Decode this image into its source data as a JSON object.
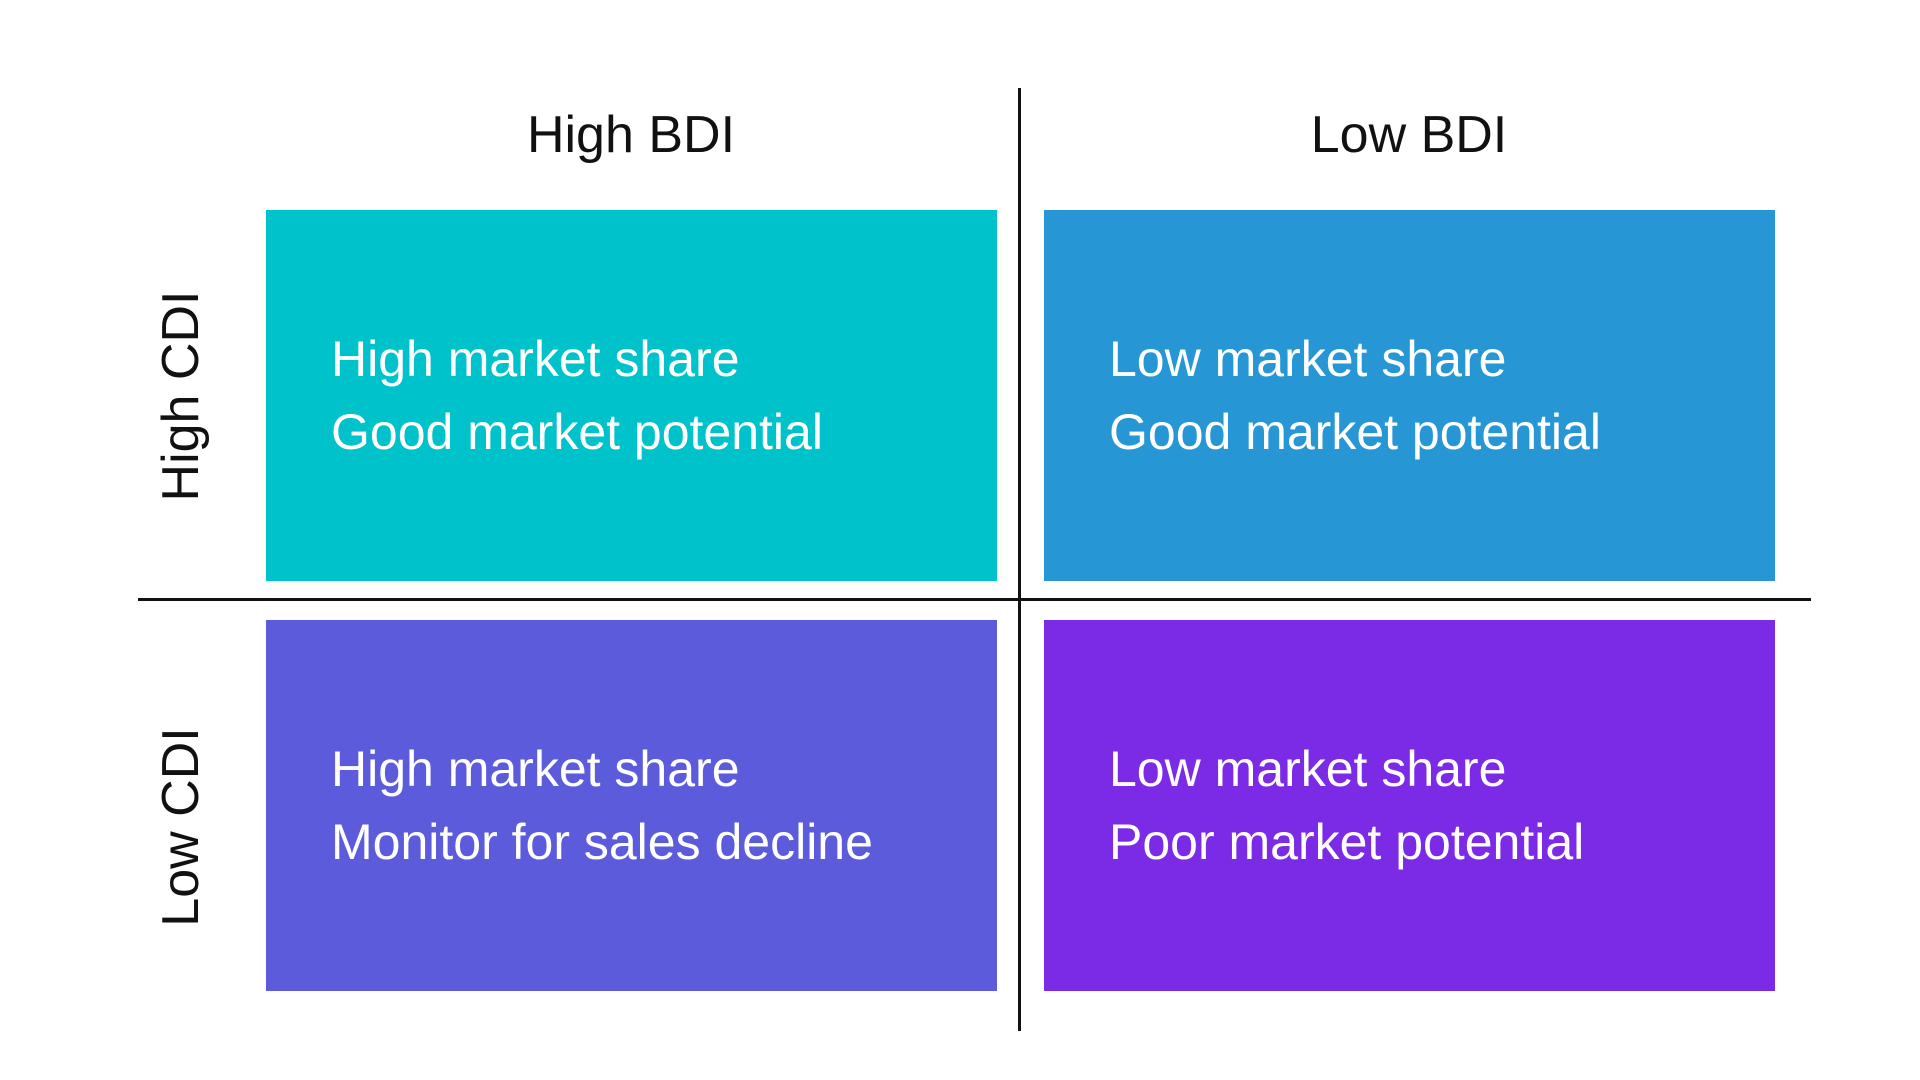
{
  "columns": [
    "High BDI",
    "Low BDI"
  ],
  "rows": [
    "High CDI",
    "Low CDI"
  ],
  "cells": [
    {
      "line1": "High market share",
      "line2": "Good market potential",
      "color": "#00C2CB"
    },
    {
      "line1": "Low market share",
      "line2": "Good market potential",
      "color": "#2697D4"
    },
    {
      "line1": "High market share",
      "line2": "Monitor for sales decline",
      "color": "#5B5BDC"
    },
    {
      "line1": "Low market share",
      "line2": "Poor market potential",
      "color": "#7B2BE6"
    }
  ]
}
